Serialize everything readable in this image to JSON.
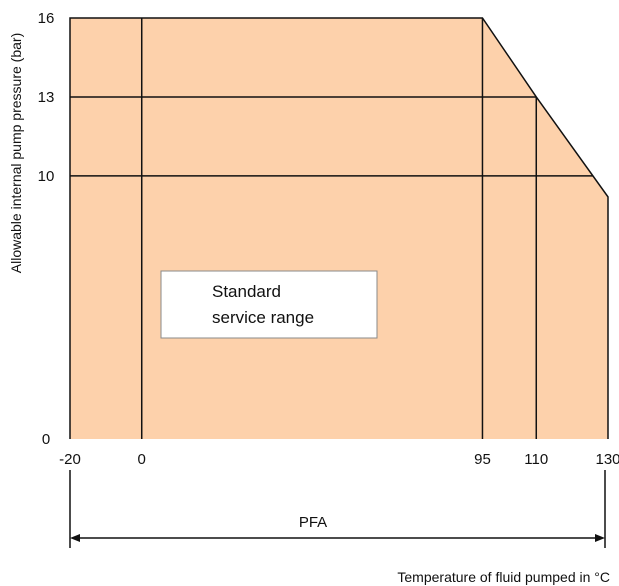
{
  "chart_data": {
    "type": "area",
    "title": "",
    "ylabel": "Allowable internal pump pressure (bar)",
    "xlabel": "Temperature of fluid pumped in °C",
    "xlim": [
      -20,
      130
    ],
    "ylim": [
      0,
      16
    ],
    "x_ticks": [
      {
        "value": -20,
        "label": "-20"
      },
      {
        "value": 0,
        "label": "0"
      },
      {
        "value": 95,
        "label": "95"
      },
      {
        "value": 110,
        "label": "110"
      },
      {
        "value": 130,
        "label": "130"
      }
    ],
    "y_ticks": [
      {
        "value": 0,
        "label": "0"
      },
      {
        "value": 10,
        "label": "10"
      },
      {
        "value": 13,
        "label": "13"
      },
      {
        "value": 16,
        "label": "16"
      }
    ],
    "series": [
      {
        "name": "Standard service range",
        "x": [
          -20,
          95,
          110,
          130
        ],
        "y": [
          16,
          16,
          13,
          9.2
        ]
      }
    ],
    "reference_lines_x": [
      0,
      95,
      110
    ],
    "reference_lines_y": [
      10,
      13
    ],
    "annotation_lines": [
      "Standard",
      "service range"
    ],
    "range_label": "PFA",
    "range": [
      -20,
      130
    ],
    "colors": {
      "fill": "#fdd1ab",
      "line": "#111111",
      "box": "#ffffff"
    },
    "grid": false,
    "legend": "none"
  }
}
